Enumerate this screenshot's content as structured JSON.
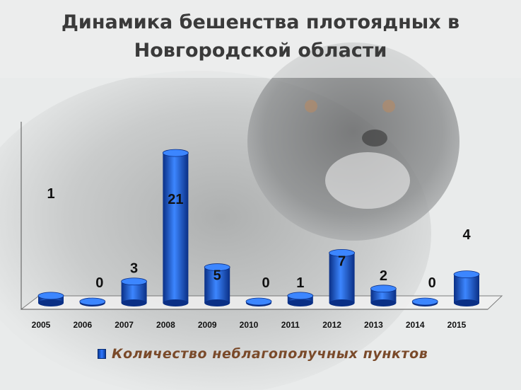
{
  "chart_data": {
    "type": "bar",
    "title": "Динамика бешенства плотоядных в Новгородской области",
    "categories": [
      "2005",
      "2006",
      "2007",
      "2008",
      "2009",
      "2010",
      "2011",
      "2012",
      "2013",
      "2014",
      "2015"
    ],
    "series": [
      {
        "name": "Количество неблагополучных пунктов",
        "values": [
          1,
          0,
          3,
          21,
          5,
          0,
          1,
          7,
          2,
          0,
          4
        ]
      }
    ],
    "ylim": [
      0,
      22
    ],
    "legend": "bottom",
    "grid": false,
    "colors": {
      "bar": "#1550c8",
      "bar_dark": "#0a2f85",
      "bar_light": "#3c86ff",
      "title": "#3a3a3a",
      "legend_text": "#7a4a2a"
    }
  }
}
